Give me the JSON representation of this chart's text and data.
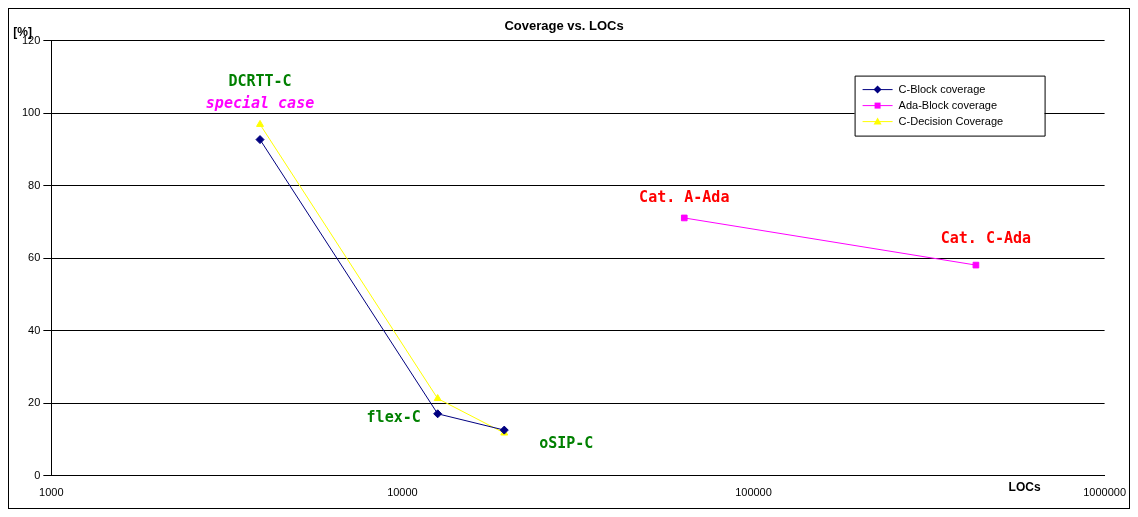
{
  "chart_data": {
    "type": "line",
    "title": "Coverage vs. LOCs",
    "xlabel": "LOCs",
    "ylabel": "[%]",
    "log": "x",
    "xlim": [
      1000,
      1000000
    ],
    "xticks": [
      1000,
      10000,
      100000,
      1000000
    ],
    "ylim": [
      0,
      120
    ],
    "yticks": [
      0,
      20,
      40,
      60,
      80,
      100,
      120
    ],
    "grid": "y",
    "legend": "top right",
    "series": [
      {
        "name": "C-Block coverage",
        "color": "#000080",
        "marker": "diamond",
        "x": [
          3930,
          12600,
          19500
        ],
        "values": [
          92.7,
          17.1,
          12.6
        ]
      },
      {
        "name": "Ada-Block coverage",
        "color": "#ff00ff",
        "marker": "square",
        "x": [
          63500,
          430000
        ],
        "values": [
          71.1,
          58.1
        ]
      },
      {
        "name": "C-Decision Coverage",
        "color": "#ffff00",
        "marker": "triangle",
        "x": [
          3930,
          12600,
          19500
        ],
        "values": [
          96.9,
          21.3,
          11.8
        ]
      }
    ],
    "annotations": [
      {
        "text": "DCRTT-C",
        "x": 3930,
        "y": 96.9
      },
      {
        "text": "special case",
        "x": 3930,
        "y": 96.9
      },
      {
        "text": "flex-C",
        "x": 12600,
        "y": 17.1
      },
      {
        "text": "oSIP-C",
        "x": 19500,
        "y": 12.6
      },
      {
        "text": "Cat. A-Ada",
        "x": 63500,
        "y": 71.1
      },
      {
        "text": "Cat. C-Ada",
        "x": 430000,
        "y": 58.1
      }
    ]
  }
}
